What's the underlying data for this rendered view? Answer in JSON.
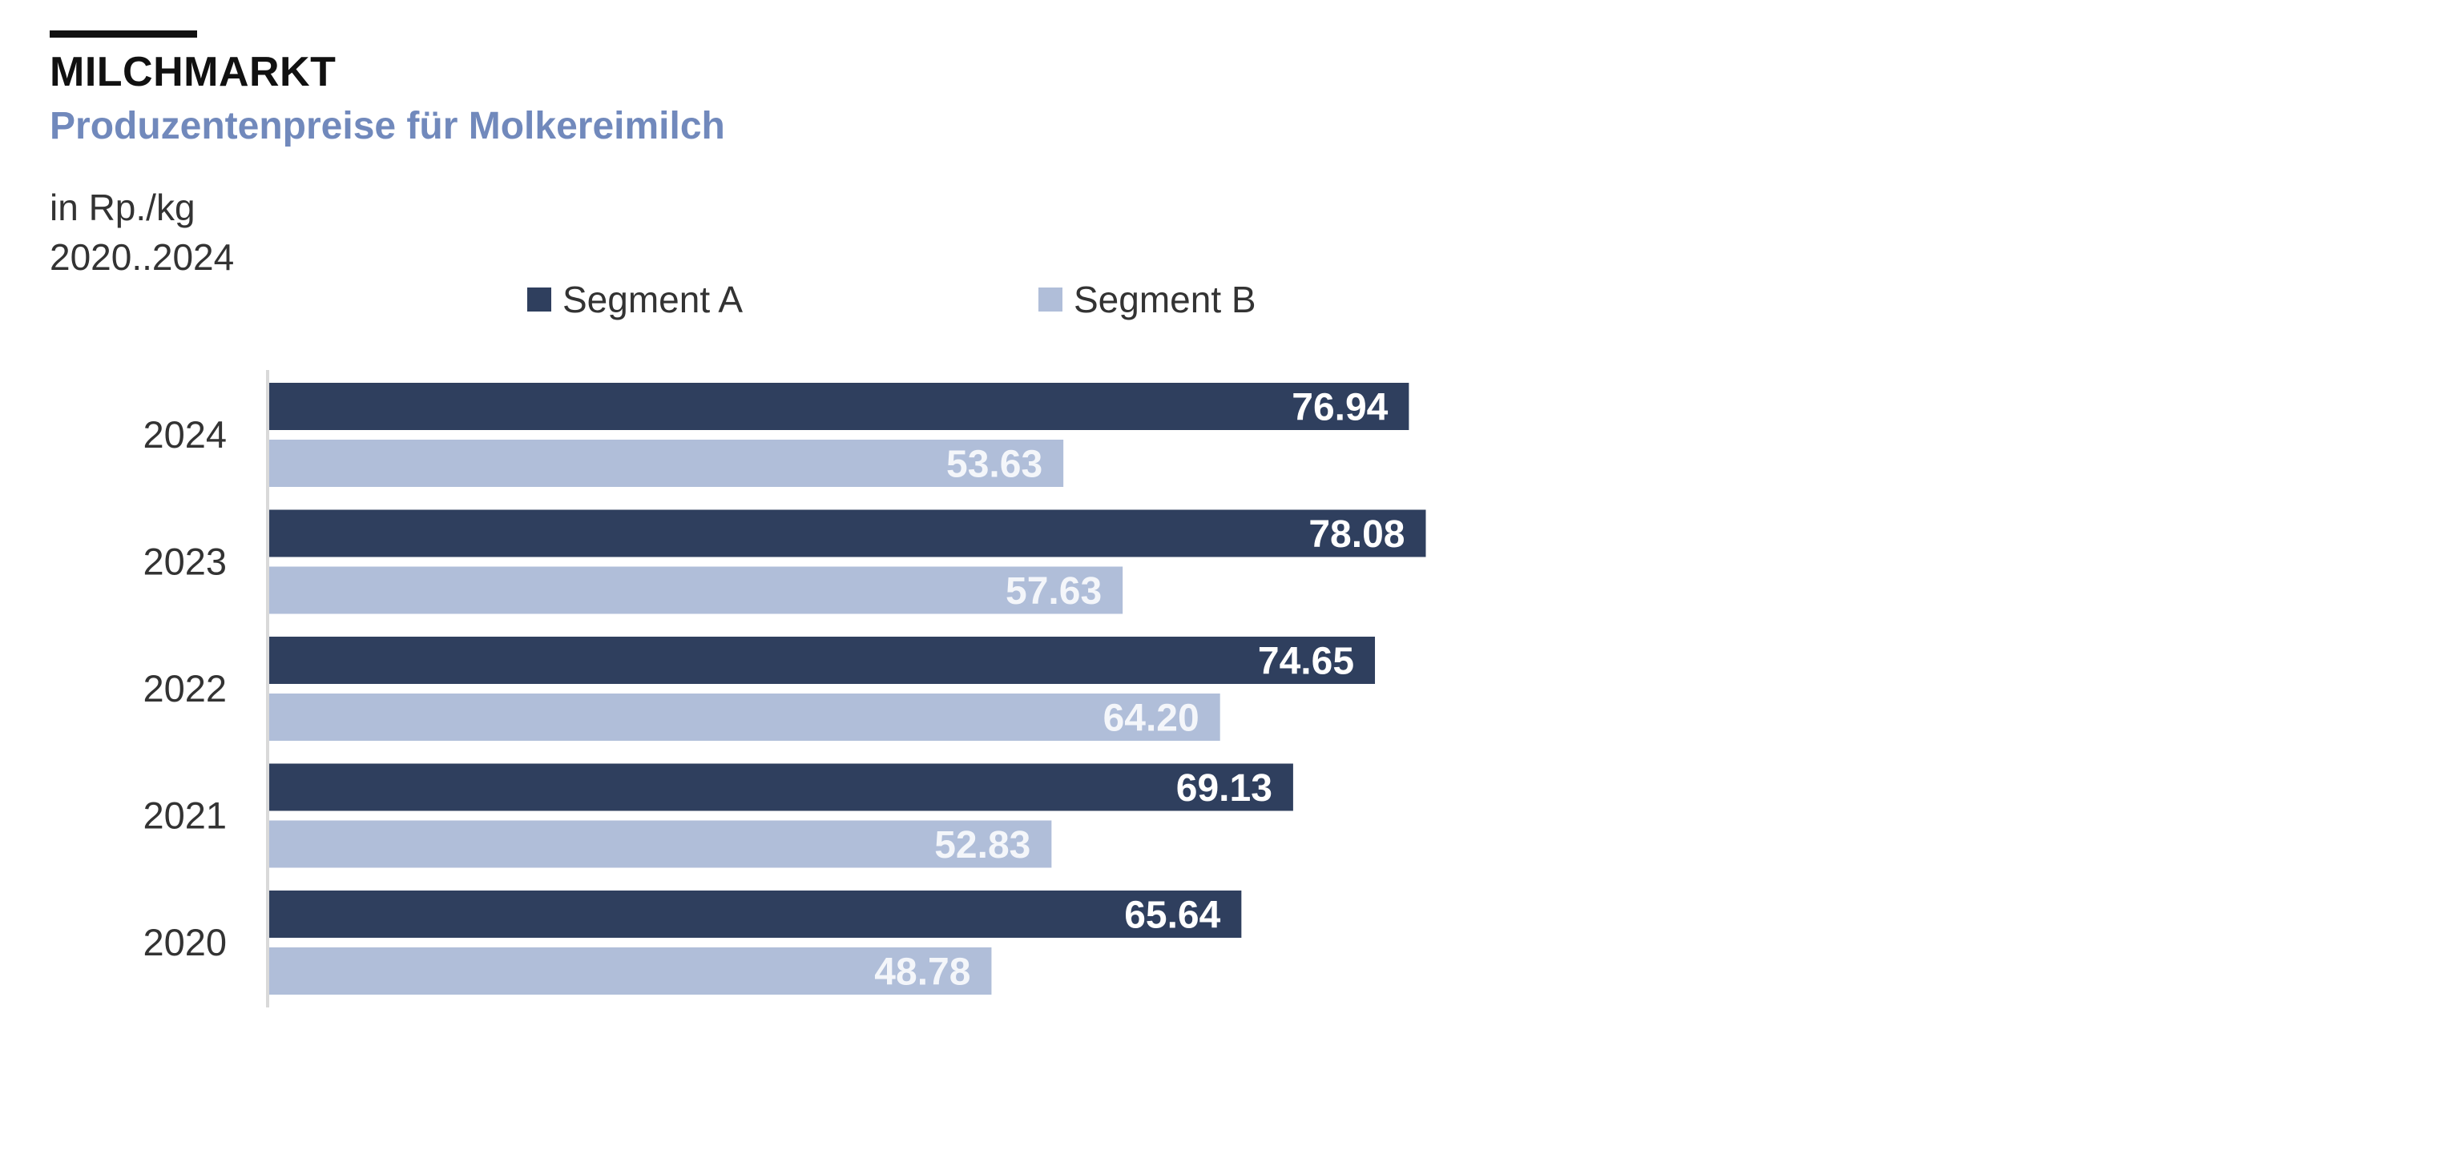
{
  "header": {
    "title": "MILCHMARKT",
    "subtitle": "Produzentenpreise für Molkereimilch",
    "unit": "in Rp./kg",
    "period": "2020..2024"
  },
  "colors": {
    "segment_a": "#2f3f5e",
    "segment_b": "#b0bed9",
    "subtitle": "#7189bc",
    "axis": "#d9d9d9"
  },
  "chart_data": {
    "type": "bar",
    "orientation": "horizontal",
    "categories": [
      "2024",
      "2023",
      "2022",
      "2021",
      "2020"
    ],
    "series": [
      {
        "name": "Segment A",
        "values": [
          76.94,
          78.08,
          74.65,
          69.13,
          65.64
        ]
      },
      {
        "name": "Segment B",
        "values": [
          53.63,
          57.63,
          64.2,
          52.83,
          48.78
        ]
      }
    ],
    "value_labels": {
      "Segment A": [
        "76.94",
        "78.08",
        "74.65",
        "69.13",
        "65.64"
      ],
      "Segment B": [
        "53.63",
        "57.63",
        "64.20",
        "52.83",
        "48.78"
      ]
    },
    "legend_position": "top",
    "data_labels": "inside-end",
    "grid": false,
    "xlim": [
      0,
      160
    ]
  }
}
